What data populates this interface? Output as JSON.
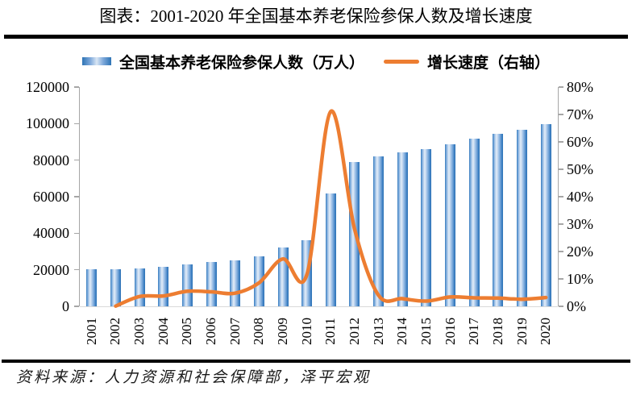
{
  "title": "图表：2001-2020 年全国基本养老保险参保人数及增长速度",
  "legend": {
    "bars": "全国基本养老保险参保人数（万人）",
    "line": "增长速度（右轴）"
  },
  "source": "资料来源：人力资源和社会保障部，泽平宏观",
  "colors": {
    "bar_edge": "#2E74B5",
    "bar_light": "#E4EEF9",
    "line": "#ED7D31",
    "axis": "#A6A6A6",
    "baseline": "#D9D9D9",
    "rule": "#000000"
  },
  "chart_data": {
    "type": "bar",
    "subtype": "bar+line combo, dual axis",
    "categories": [
      "2001",
      "2002",
      "2003",
      "2004",
      "2005",
      "2006",
      "2007",
      "2008",
      "2009",
      "2010",
      "2011",
      "2012",
      "2013",
      "2014",
      "2015",
      "2016",
      "2017",
      "2018",
      "2019",
      "2020"
    ],
    "series": [
      {
        "name": "全国基本养老保险参保人数（万人）",
        "type": "bar",
        "axis": "left",
        "values": [
          20178,
          20198,
          20934,
          21731,
          22930,
          24140,
          25308,
          27486,
          32241,
          35984,
          61573,
          78797,
          81968,
          84232,
          85833,
          88777,
          91548,
          94293,
          96754,
          99865
        ]
      },
      {
        "name": "增长速度（右轴）",
        "type": "line",
        "axis": "right",
        "smooth": true,
        "values_percent": [
          null,
          0.1,
          3.6,
          3.8,
          5.5,
          5.3,
          4.8,
          8.6,
          17.3,
          11.6,
          71.1,
          28.0,
          4.0,
          2.8,
          1.9,
          3.4,
          3.1,
          3.0,
          2.6,
          3.2
        ]
      }
    ],
    "left_axis": {
      "min": 0,
      "max": 120000,
      "step": 20000,
      "tick_labels": [
        "0",
        "20000",
        "40000",
        "60000",
        "80000",
        "100000",
        "120000"
      ]
    },
    "right_axis": {
      "min": 0,
      "max": 80,
      "step": 10,
      "tick_labels": [
        "0%",
        "10%",
        "20%",
        "30%",
        "40%",
        "50%",
        "60%",
        "70%",
        "80%"
      ]
    },
    "grid": false,
    "legend_position": "top"
  }
}
